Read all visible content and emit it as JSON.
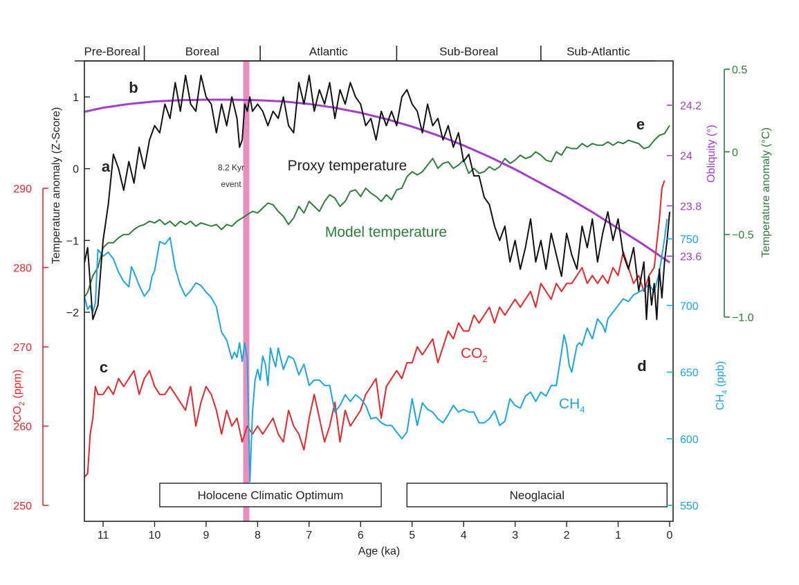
{
  "chart_data": {
    "type": "line",
    "x_axis": {
      "label": "Age (ka)",
      "range": [
        11.45,
        0
      ],
      "ticks": [
        11,
        10,
        9,
        8,
        7,
        6,
        5,
        4,
        3,
        2,
        1,
        0
      ],
      "tick_labels": [
        "11",
        "10",
        "9",
        "8",
        "7",
        "6",
        "5",
        "4",
        "3",
        "2",
        "1",
        "0"
      ]
    },
    "periods": [
      {
        "label": "Pre-Boreal",
        "start": 11.45,
        "end": 10.2
      },
      {
        "label": "Boreal",
        "start": 10.2,
        "end": 7.95
      },
      {
        "label": "Atlantic",
        "start": 7.95,
        "end": 5.3
      },
      {
        "label": "Sub-Boreal",
        "start": 5.3,
        "end": 2.5
      },
      {
        "label": "Sub-Atlantic",
        "start": 2.5,
        "end": 0
      }
    ],
    "intervals": [
      {
        "label": "Holocene Climatic Optimum",
        "start": 9.9,
        "end": 5.6
      },
      {
        "label": "Neoglacial",
        "start": 5.1,
        "end": 0.05
      }
    ],
    "event": {
      "label_line1": "8.2 Kyr",
      "label_line2": "event",
      "x_center": 8.22,
      "half_width": 0.06
    },
    "panel_labels": [
      "a",
      "b",
      "c",
      "d",
      "e"
    ],
    "axes": {
      "temp_z": {
        "label": "Temperature anomaly (Z-Score)",
        "ticks": [
          1,
          0,
          -1,
          -2
        ],
        "tick_labels": [
          "1",
          "0",
          "−1",
          "−2"
        ],
        "color": "#222222"
      },
      "co2": {
        "label_main": "CO",
        "label_sub": "2",
        "label_end": " (ppm)",
        "ticks": [
          290,
          280,
          270,
          260,
          250
        ],
        "tick_labels": [
          "290",
          "280",
          "270",
          "260",
          "250"
        ],
        "color": "#e8262b"
      },
      "obliquity": {
        "label": "Obliquity (°)",
        "ticks": [
          24.2,
          24,
          23.8,
          23.6
        ],
        "tick_labels": [
          "24.2",
          "24",
          "23.8",
          "23.6"
        ],
        "color": "#a23ec7"
      },
      "ch4": {
        "label_main": "CH",
        "label_sub": "4",
        "label_end": " (ppb)",
        "ticks": [
          750,
          700,
          650,
          600,
          550
        ],
        "tick_labels": [
          "750",
          "700",
          "650",
          "600",
          "550"
        ],
        "color": "#1aa6e3"
      },
      "temp_c": {
        "label": "Temperature anomaly (°C)",
        "ticks": [
          0.5,
          0,
          -0.5,
          -1.0
        ],
        "tick_labels": [
          "0.5",
          "0",
          "−0.5",
          "−1.0"
        ],
        "color": "#2e7d3a"
      }
    },
    "series": [
      {
        "name": "Proxy temperature",
        "axis": "temp_z",
        "color": "#111111",
        "x": [
          11.45,
          11.3,
          11.2,
          11.1,
          11.0,
          10.9,
          10.8,
          10.7,
          10.6,
          10.5,
          10.4,
          10.3,
          10.2,
          10.1,
          10.0,
          9.9,
          9.8,
          9.7,
          9.6,
          9.5,
          9.4,
          9.3,
          9.2,
          9.1,
          9.0,
          8.9,
          8.8,
          8.7,
          8.6,
          8.5,
          8.4,
          8.35,
          8.3,
          8.25,
          8.2,
          8.15,
          8.1,
          8.0,
          7.9,
          7.8,
          7.7,
          7.6,
          7.5,
          7.4,
          7.3,
          7.2,
          7.1,
          7.0,
          6.9,
          6.8,
          6.7,
          6.6,
          6.5,
          6.4,
          6.3,
          6.2,
          6.1,
          6.0,
          5.9,
          5.8,
          5.7,
          5.6,
          5.5,
          5.4,
          5.3,
          5.2,
          5.1,
          5.0,
          4.9,
          4.8,
          4.7,
          4.6,
          4.5,
          4.4,
          4.3,
          4.2,
          4.1,
          4.0,
          3.9,
          3.8,
          3.7,
          3.6,
          3.5,
          3.4,
          3.3,
          3.2,
          3.1,
          3.0,
          2.9,
          2.8,
          2.7,
          2.6,
          2.5,
          2.4,
          2.3,
          2.2,
          2.1,
          2.0,
          1.9,
          1.8,
          1.7,
          1.6,
          1.5,
          1.4,
          1.3,
          1.2,
          1.1,
          1.0,
          0.9,
          0.8,
          0.7,
          0.6,
          0.5,
          0.45,
          0.4,
          0.35,
          0.3,
          0.25,
          0.2,
          0.15,
          0.1,
          0.05,
          0.0
        ],
        "y": [
          -1.6,
          -1.1,
          -2.1,
          -1.9,
          -1.0,
          -0.5,
          0.2,
          0.0,
          -0.3,
          0.1,
          -0.2,
          0.3,
          0.0,
          0.4,
          0.6,
          0.5,
          0.9,
          0.7,
          1.2,
          0.8,
          1.3,
          0.9,
          0.8,
          1.3,
          1.0,
          0.9,
          0.5,
          0.9,
          0.6,
          1.0,
          0.7,
          0.3,
          0.4,
          0.9,
          0.8,
          1.0,
          0.8,
          0.9,
          0.8,
          0.6,
          0.8,
          0.7,
          1.0,
          0.6,
          0.5,
          1.2,
          0.9,
          1.3,
          0.8,
          1.1,
          0.9,
          1.2,
          0.7,
          1.1,
          0.9,
          1.2,
          1.0,
          0.9,
          0.6,
          0.7,
          0.4,
          0.8,
          0.6,
          0.8,
          0.6,
          1.0,
          1.1,
          0.9,
          0.8,
          0.5,
          0.9,
          0.6,
          0.7,
          0.4,
          0.6,
          0.3,
          0.5,
          0.1,
          0.2,
          -0.1,
          -0.1,
          -0.4,
          -0.5,
          -0.8,
          -1.0,
          -0.8,
          -1.3,
          -1.0,
          -1.4,
          -1.1,
          -0.7,
          -1.3,
          -1.0,
          -1.4,
          -0.9,
          -1.2,
          -1.5,
          -0.9,
          -1.2,
          -1.4,
          -0.8,
          -1.1,
          -0.7,
          -1.3,
          -0.9,
          -0.6,
          -1.0,
          -0.7,
          -1.2,
          -1.4,
          -1.1,
          -1.7,
          -1.3,
          -2.1,
          -1.5,
          -1.9,
          -1.6,
          -2.1,
          -1.4,
          -1.8,
          -1.3,
          -1.0,
          -0.6
        ]
      },
      {
        "name": "Model temperature",
        "axis": "temp_c",
        "color": "#2e7d3a",
        "x": [
          11.45,
          11.3,
          11.2,
          11.1,
          11.0,
          10.9,
          10.8,
          10.7,
          10.6,
          10.5,
          10.4,
          10.3,
          10.2,
          10.1,
          10.0,
          9.9,
          9.8,
          9.7,
          9.6,
          9.5,
          9.4,
          9.3,
          9.2,
          9.1,
          9.0,
          8.9,
          8.8,
          8.7,
          8.6,
          8.5,
          8.4,
          8.3,
          8.2,
          8.1,
          8.0,
          7.9,
          7.8,
          7.7,
          7.6,
          7.5,
          7.4,
          7.3,
          7.2,
          7.1,
          7.0,
          6.9,
          6.8,
          6.7,
          6.6,
          6.5,
          6.4,
          6.3,
          6.2,
          6.1,
          6.0,
          5.9,
          5.8,
          5.7,
          5.6,
          5.5,
          5.4,
          5.3,
          5.2,
          5.1,
          5.0,
          4.9,
          4.8,
          4.7,
          4.6,
          4.5,
          4.4,
          4.3,
          4.2,
          4.1,
          4.0,
          3.9,
          3.8,
          3.7,
          3.6,
          3.5,
          3.4,
          3.3,
          3.2,
          3.1,
          3.0,
          2.9,
          2.8,
          2.7,
          2.6,
          2.5,
          2.4,
          2.3,
          2.2,
          2.1,
          2.0,
          1.9,
          1.8,
          1.7,
          1.6,
          1.5,
          1.4,
          1.3,
          1.2,
          1.1,
          1.0,
          0.9,
          0.8,
          0.7,
          0.6,
          0.5,
          0.4,
          0.3,
          0.2,
          0.1,
          0.0
        ],
        "y": [
          -0.92,
          -0.85,
          -0.75,
          -0.7,
          -0.58,
          -0.55,
          -0.55,
          -0.52,
          -0.5,
          -0.5,
          -0.47,
          -0.45,
          -0.44,
          -0.42,
          -0.43,
          -0.41,
          -0.44,
          -0.42,
          -0.45,
          -0.42,
          -0.44,
          -0.42,
          -0.45,
          -0.43,
          -0.44,
          -0.45,
          -0.44,
          -0.47,
          -0.44,
          -0.45,
          -0.42,
          -0.4,
          -0.38,
          -0.36,
          -0.37,
          -0.34,
          -0.31,
          -0.32,
          -0.36,
          -0.39,
          -0.44,
          -0.4,
          -0.33,
          -0.37,
          -0.3,
          -0.33,
          -0.36,
          -0.3,
          -0.26,
          -0.28,
          -0.33,
          -0.3,
          -0.24,
          -0.23,
          -0.27,
          -0.22,
          -0.25,
          -0.27,
          -0.3,
          -0.26,
          -0.29,
          -0.23,
          -0.22,
          -0.15,
          -0.12,
          -0.14,
          -0.12,
          -0.08,
          -0.04,
          -0.1,
          -0.07,
          -0.06,
          -0.1,
          -0.08,
          -0.05,
          -0.13,
          -0.1,
          -0.13,
          -0.12,
          -0.09,
          -0.11,
          -0.09,
          -0.04,
          -0.07,
          -0.05,
          -0.02,
          -0.04,
          -0.03,
          0.0,
          -0.02,
          -0.05,
          -0.06,
          0.0,
          -0.02,
          0.03,
          0.02,
          0.02,
          0.05,
          0.03,
          0.05,
          0.04,
          0.04,
          0.06,
          0.04,
          0.06,
          0.05,
          0.07,
          0.06,
          0.05,
          0.02,
          0.03,
          0.07,
          0.1,
          0.11,
          0.16
        ]
      },
      {
        "name": "Obliquity",
        "axis": "obliquity",
        "color": "#a23ec7",
        "x": [
          11.45,
          11.0,
          10.5,
          10.0,
          9.5,
          9.0,
          8.5,
          8.0,
          7.5,
          7.0,
          6.5,
          6.0,
          5.5,
          5.0,
          4.5,
          4.0,
          3.5,
          3.0,
          2.5,
          2.0,
          1.5,
          1.0,
          0.5,
          0.0
        ],
        "y": [
          24.17,
          24.19,
          24.205,
          24.215,
          24.22,
          24.222,
          24.222,
          24.22,
          24.215,
          24.205,
          24.19,
          24.17,
          24.145,
          24.115,
          24.08,
          24.04,
          23.995,
          23.945,
          23.89,
          23.835,
          23.775,
          23.71,
          23.645,
          23.575
        ]
      },
      {
        "name": "CO2",
        "label_main": "CO",
        "label_sub": "2",
        "axis": "co2",
        "color": "#e8262b",
        "x": [
          11.45,
          11.3,
          11.25,
          11.2,
          11.15,
          11.1,
          11.0,
          10.9,
          10.8,
          10.7,
          10.6,
          10.5,
          10.4,
          10.3,
          10.2,
          10.1,
          10.0,
          9.9,
          9.8,
          9.7,
          9.6,
          9.5,
          9.4,
          9.3,
          9.2,
          9.1,
          9.0,
          8.9,
          8.8,
          8.7,
          8.6,
          8.5,
          8.4,
          8.3,
          8.2,
          8.1,
          8.0,
          7.9,
          7.8,
          7.7,
          7.6,
          7.5,
          7.4,
          7.3,
          7.2,
          7.1,
          7.0,
          6.9,
          6.8,
          6.7,
          6.6,
          6.5,
          6.4,
          6.3,
          6.2,
          6.1,
          6.0,
          5.9,
          5.8,
          5.7,
          5.6,
          5.5,
          5.4,
          5.3,
          5.2,
          5.1,
          5.0,
          4.9,
          4.8,
          4.7,
          4.6,
          4.5,
          4.4,
          4.3,
          4.2,
          4.1,
          4.0,
          3.9,
          3.8,
          3.7,
          3.6,
          3.5,
          3.4,
          3.3,
          3.2,
          3.1,
          3.0,
          2.9,
          2.8,
          2.7,
          2.6,
          2.5,
          2.4,
          2.3,
          2.2,
          2.1,
          2.0,
          1.9,
          1.8,
          1.7,
          1.6,
          1.5,
          1.4,
          1.3,
          1.2,
          1.1,
          1.0,
          0.9,
          0.8,
          0.7,
          0.6,
          0.5,
          0.4,
          0.3,
          0.25,
          0.2,
          0.15,
          0.1
        ],
        "y": [
          253,
          254,
          259,
          261,
          265,
          264,
          264,
          265,
          264,
          266,
          265,
          266,
          267,
          264,
          266,
          267,
          265,
          264,
          264,
          265,
          264,
          263,
          262,
          265,
          260,
          263,
          265,
          264,
          262,
          259,
          262,
          260,
          261,
          258,
          260,
          259,
          260,
          259,
          260,
          261,
          259,
          258,
          262,
          260,
          259,
          257,
          261,
          264,
          261,
          258,
          260,
          263,
          258,
          262,
          260,
          261,
          262,
          264,
          265,
          266,
          261,
          265,
          266,
          267,
          266,
          268,
          268,
          270,
          269,
          270,
          271,
          268,
          270,
          272,
          271,
          273,
          272,
          272,
          274,
          273,
          274,
          275,
          273,
          275,
          274,
          275,
          276,
          275,
          276,
          277,
          275,
          278,
          277,
          276,
          278,
          277,
          278,
          278,
          279,
          280,
          278,
          279,
          278,
          279,
          278,
          280,
          279,
          282,
          280,
          278,
          279,
          277,
          279,
          280,
          283,
          286,
          290,
          291
        ]
      },
      {
        "name": "CH4",
        "label_main": "CH",
        "label_sub": "4",
        "axis": "ch4",
        "color": "#1aa6e3",
        "x": [
          11.45,
          11.35,
          11.3,
          11.25,
          11.2,
          11.15,
          11.1,
          11.0,
          10.9,
          10.8,
          10.7,
          10.6,
          10.5,
          10.45,
          10.4,
          10.3,
          10.2,
          10.1,
          10.05,
          10.0,
          9.9,
          9.8,
          9.7,
          9.6,
          9.5,
          9.4,
          9.3,
          9.2,
          9.1,
          9.0,
          8.9,
          8.8,
          8.7,
          8.6,
          8.5,
          8.45,
          8.4,
          8.35,
          8.3,
          8.25,
          8.2,
          8.15,
          8.1,
          8.05,
          8.0,
          7.95,
          7.9,
          7.85,
          7.8,
          7.75,
          7.7,
          7.65,
          7.6,
          7.5,
          7.4,
          7.3,
          7.2,
          7.1,
          7.0,
          6.9,
          6.8,
          6.7,
          6.6,
          6.5,
          6.4,
          6.3,
          6.2,
          6.1,
          6.0,
          5.9,
          5.8,
          5.7,
          5.6,
          5.5,
          5.4,
          5.3,
          5.2,
          5.1,
          5.0,
          4.9,
          4.8,
          4.7,
          4.6,
          4.5,
          4.4,
          4.3,
          4.2,
          4.1,
          4.0,
          3.9,
          3.8,
          3.7,
          3.6,
          3.5,
          3.4,
          3.3,
          3.2,
          3.1,
          3.0,
          2.9,
          2.8,
          2.7,
          2.6,
          2.5,
          2.4,
          2.3,
          2.2,
          2.1,
          2.05,
          2.0,
          1.95,
          1.9,
          1.8,
          1.75,
          1.7,
          1.6,
          1.5,
          1.4,
          1.3,
          1.25,
          1.2,
          1.1,
          1.0,
          0.9,
          0.8,
          0.7,
          0.6,
          0.5,
          0.4,
          0.3,
          0.2,
          0.1,
          0.05
        ],
        "y": [
          719,
          705,
          697,
          700,
          695,
          702,
          742,
          737,
          740,
          735,
          725,
          718,
          714,
          729,
          725,
          715,
          707,
          712,
          722,
          726,
          748,
          746,
          751,
          728,
          715,
          707,
          711,
          717,
          715,
          710,
          706,
          699,
          680,
          674,
          660,
          665,
          661,
          672,
          658,
          672,
          660,
          568,
          620,
          644,
          652,
          644,
          662,
          656,
          640,
          668,
          660,
          654,
          668,
          652,
          662,
          660,
          648,
          656,
          640,
          644,
          644,
          640,
          640,
          620,
          625,
          633,
          628,
          633,
          630,
          625,
          615,
          616,
          612,
          610,
          610,
          605,
          600,
          605,
          630,
          610,
          627,
          622,
          620,
          615,
          612,
          618,
          625,
          620,
          622,
          620,
          620,
          612,
          612,
          615,
          621,
          610,
          613,
          630,
          625,
          623,
          632,
          635,
          628,
          635,
          632,
          640,
          640,
          665,
          678,
          670,
          655,
          650,
          670,
          672,
          670,
          683,
          675,
          690,
          685,
          680,
          690,
          695,
          700,
          705,
          703,
          708,
          710,
          712,
          716,
          710,
          725,
          750,
          765
        ]
      }
    ]
  }
}
